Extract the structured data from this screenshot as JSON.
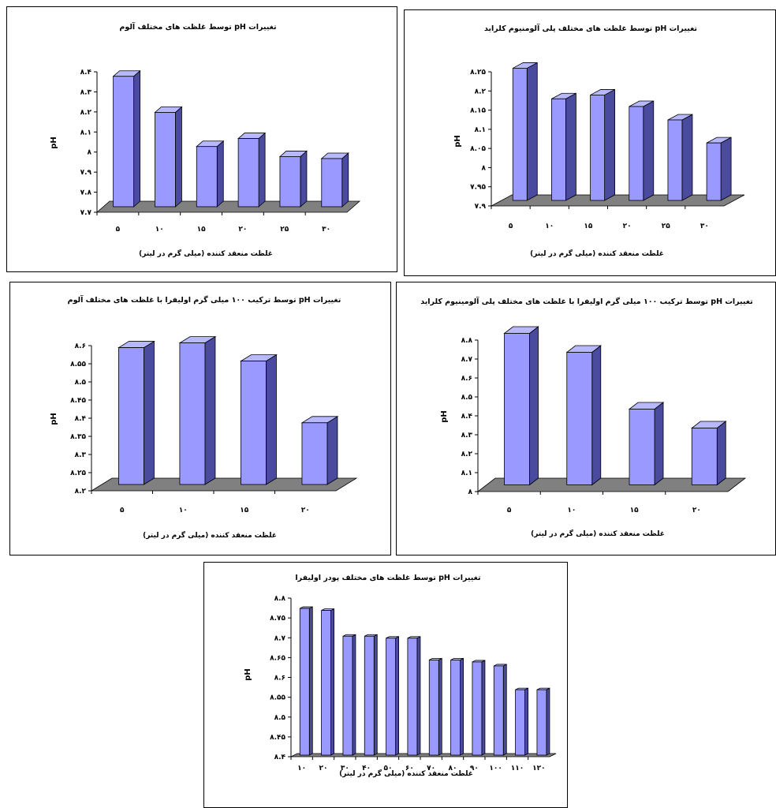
{
  "chart_data": [
    {
      "type": "bar",
      "title": "تغییرات pH توسط غلظت های مختلف آلوم",
      "xlabel": "غلظت منعقد کننده (میلی گرم در لیتر)",
      "ylabel": "pH",
      "categories": [
        "۵",
        "۱۰",
        "۱۵",
        "۲۰",
        "۲۵",
        "۳۰"
      ],
      "values": [
        8.35,
        8.17,
        8.0,
        8.04,
        7.95,
        7.94
      ],
      "ylim": [
        7.7,
        8.4
      ],
      "yticks": [
        7.7,
        7.8,
        7.9,
        8.0,
        8.1,
        8.2,
        8.3,
        8.4
      ],
      "ytick_labels": [
        "۷.۷",
        "۷.۸",
        "۷.۹",
        "۸",
        "۸.۱",
        "۸.۲",
        "۸.۳",
        "۸.۴"
      ]
    },
    {
      "type": "bar",
      "title": "تغییرات pH توسط غلظت های مختلف پلی آلومنیوم کلراید",
      "xlabel": "غلظت منعقد کننده (میلی گرم در لیتر)",
      "ylabel": "pH",
      "categories": [
        "۵",
        "۱۰",
        "۱۵",
        "۲۰",
        "۲۵",
        "۳۰"
      ],
      "values": [
        8.245,
        8.165,
        8.175,
        8.145,
        8.11,
        8.05
      ],
      "ylim": [
        7.9,
        8.25
      ],
      "yticks": [
        7.9,
        7.95,
        8.0,
        8.05,
        8.1,
        8.15,
        8.2,
        8.25
      ],
      "ytick_labels": [
        "۷.۹",
        "۷.۹۵",
        "۸",
        "۸.۰۵",
        "۸.۱",
        "۸.۱۵",
        "۸.۲",
        "۸.۲۵"
      ]
    },
    {
      "type": "bar",
      "title": "تغییرات pH توسط ترکیب ۱۰۰ میلی گرم اولیفرا با غلظت های مختلف آلوم",
      "xlabel": "غلظت منعقد کننده (میلی گرم در لیتر)",
      "ylabel": "pH",
      "categories": [
        "۵",
        "۱۰",
        "۱۵",
        "۲۰"
      ],
      "values": [
        8.577,
        8.59,
        8.54,
        8.37
      ],
      "ylim": [
        8.2,
        8.6
      ],
      "yticks": [
        8.2,
        8.25,
        8.3,
        8.35,
        8.4,
        8.45,
        8.5,
        8.55,
        8.6
      ],
      "ytick_labels": [
        "۸.۲",
        "۸.۲۵",
        "۸.۳",
        "۸.۳۵",
        "۸.۴",
        "۸.۴۵",
        "۸.۵",
        "۸.۵۵",
        "۸.۶"
      ]
    },
    {
      "type": "bar",
      "title": "تغییرات pH توسط ترکیب ۱۰۰ میلی گرم اولیفرا با غلظت های مختلف پلی آلومینیوم کلراید",
      "xlabel": "غلظت منعقد کننده (میلی گرم در لیتر)",
      "ylabel": "pH",
      "categories": [
        "۵",
        "۱۰",
        "۱۵",
        "۲۰"
      ],
      "values": [
        8.8,
        8.7,
        8.4,
        8.3
      ],
      "ylim": [
        8.0,
        8.8
      ],
      "yticks": [
        8.0,
        8.1,
        8.2,
        8.3,
        8.4,
        8.5,
        8.6,
        8.7,
        8.8
      ],
      "ytick_labels": [
        "۸",
        "۸.۱",
        "۸.۲",
        "۸.۳",
        "۸.۴",
        "۸.۵",
        "۸.۶",
        "۸.۷",
        "۸.۸"
      ]
    },
    {
      "type": "bar",
      "title": "تغییرات pH توسط غلظت های مختلف پودر اولیفرا",
      "xlabel": "غلظت منعقد کننده (میلی گرم در لیتر)",
      "ylabel": "pH",
      "categories": [
        "۱۰",
        "۲۰",
        "۳۰",
        "۴۰",
        "۵۰",
        "۶۰",
        "۷۰",
        "۸۰",
        "۹۰",
        "۱۰۰",
        "۱۱۰",
        "۱۲۰"
      ],
      "values": [
        8.77,
        8.765,
        8.7,
        8.7,
        8.695,
        8.695,
        8.64,
        8.64,
        8.635,
        8.625,
        8.565,
        8.565
      ],
      "ylim": [
        8.4,
        8.8
      ],
      "yticks": [
        8.4,
        8.45,
        8.5,
        8.55,
        8.6,
        8.65,
        8.7,
        8.75,
        8.8
      ],
      "ytick_labels": [
        "۸.۴",
        "۸.۴۵",
        "۸.۵",
        "۸.۵۵",
        "۸.۶",
        "۸.۶۵",
        "۸.۷",
        "۸.۷۵",
        "۸.۸"
      ]
    }
  ],
  "colors": {
    "bar_front": "#9999ff",
    "bar_side": "#4a4a9e",
    "bar_top": "#b8b8ff",
    "floor": "#808080",
    "outline": "#000000"
  }
}
